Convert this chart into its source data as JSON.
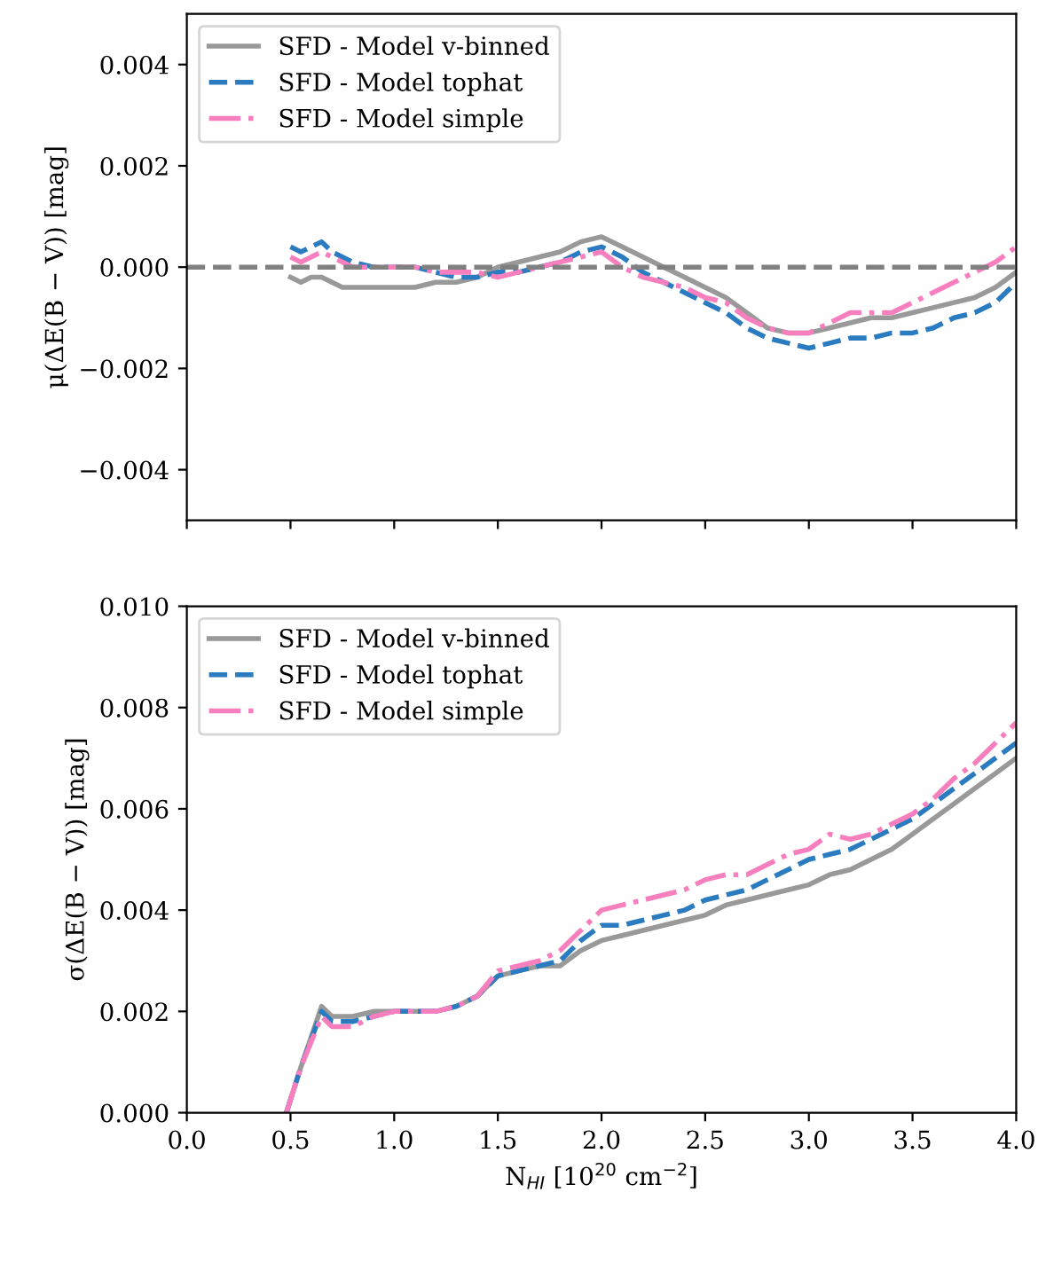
{
  "chart_data": [
    {
      "type": "line",
      "ylabel": "μ(ΔE(B − V)) [mag]",
      "xlim": [
        0.0,
        4.0
      ],
      "ylim": [
        -0.005,
        0.005
      ],
      "xticks": [
        {
          "value": 0.0,
          "label": null
        },
        {
          "value": 0.5,
          "label": null
        },
        {
          "value": 1.0,
          "label": null
        },
        {
          "value": 1.5,
          "label": null
        },
        {
          "value": 2.0,
          "label": null
        },
        {
          "value": 2.5,
          "label": null
        },
        {
          "value": 3.0,
          "label": null
        },
        {
          "value": 3.5,
          "label": null
        },
        {
          "value": 4.0,
          "label": null
        }
      ],
      "yticks": [
        {
          "value": -0.004,
          "label": "−0.004"
        },
        {
          "value": -0.002,
          "label": "−0.002"
        },
        {
          "value": 0.0,
          "label": "0.000"
        },
        {
          "value": 0.002,
          "label": "0.002"
        },
        {
          "value": 0.004,
          "label": "0.004"
        }
      ],
      "tick_labels": "y",
      "legend": "top left",
      "grid": false,
      "ref_lines": [
        {
          "axis": "y",
          "value": 0.0,
          "color": "#808080",
          "line_style": "dashed"
        }
      ],
      "x": [
        0.5,
        0.55,
        0.6,
        0.65,
        0.7,
        0.75,
        0.8,
        0.9,
        1.0,
        1.1,
        1.2,
        1.3,
        1.4,
        1.5,
        1.6,
        1.7,
        1.8,
        1.9,
        2.0,
        2.1,
        2.2,
        2.3,
        2.4,
        2.5,
        2.6,
        2.7,
        2.8,
        2.9,
        3.0,
        3.1,
        3.2,
        3.3,
        3.4,
        3.5,
        3.6,
        3.7,
        3.8,
        3.9,
        4.0
      ],
      "series": [
        {
          "name": "SFD - Model v-binned",
          "color": "#999999",
          "line_style": "solid",
          "values": [
            -0.0002,
            -0.0003,
            -0.0002,
            -0.0002,
            -0.0003,
            -0.0004,
            -0.0004,
            -0.0004,
            -0.0004,
            -0.0004,
            -0.0003,
            -0.0003,
            -0.0002,
            0.0,
            0.0001,
            0.0002,
            0.0003,
            0.0005,
            0.0006,
            0.0004,
            0.0002,
            0.0,
            -0.0002,
            -0.0004,
            -0.0006,
            -0.0009,
            -0.0012,
            -0.0013,
            -0.0013,
            -0.0012,
            -0.0011,
            -0.001,
            -0.001,
            -0.0009,
            -0.0008,
            -0.0007,
            -0.0006,
            -0.0004,
            -0.0001
          ]
        },
        {
          "name": "SFD - Model tophat",
          "color": "#2a7bbf",
          "line_style": "dashed",
          "values": [
            0.0004,
            0.0003,
            0.0004,
            0.0005,
            0.0003,
            0.0002,
            0.0001,
            0.0,
            0.0,
            0.0,
            -0.0001,
            -0.0002,
            -0.0002,
            -0.0001,
            -0.0001,
            0.0,
            0.0001,
            0.0003,
            0.0004,
            0.0002,
            -0.0001,
            -0.0003,
            -0.0005,
            -0.0007,
            -0.0009,
            -0.0012,
            -0.0014,
            -0.0015,
            -0.0016,
            -0.0015,
            -0.0014,
            -0.0014,
            -0.0013,
            -0.0013,
            -0.0012,
            -0.001,
            -0.0009,
            -0.0007,
            -0.0003
          ]
        },
        {
          "name": "SFD - Model simple",
          "color": "#f77fbe",
          "line_style": "dashdot",
          "values": [
            0.0002,
            0.0001,
            0.0002,
            0.0003,
            0.0002,
            0.0001,
            0.0,
            0.0,
            0.0,
            0.0,
            -0.0001,
            -0.0001,
            -0.0001,
            -0.0002,
            -0.0001,
            0.0,
            0.0001,
            0.0002,
            0.0003,
            0.0,
            -0.0002,
            -0.0003,
            -0.0004,
            -0.0006,
            -0.0007,
            -0.001,
            -0.0012,
            -0.0013,
            -0.0013,
            -0.0011,
            -0.0009,
            -0.0009,
            -0.0009,
            -0.0007,
            -0.0005,
            -0.0003,
            -0.0001,
            0.0001,
            0.0004
          ]
        }
      ]
    },
    {
      "type": "line",
      "ylabel": "σ(ΔE(B − V)) [mag]",
      "xlabel": "N$_{HI}$ [10$^{20}$ cm$^{−2}$]",
      "xlim": [
        0.0,
        4.0
      ],
      "ylim": [
        0.0,
        0.01
      ],
      "xticks": [
        {
          "value": 0.0,
          "label": "0.0"
        },
        0.5,
        {
          "value": 1.0,
          "label": "1.0"
        },
        1.5,
        {
          "value": 2.0,
          "label": "2.0"
        },
        2.5,
        {
          "value": 3.0,
          "label": "3.0"
        },
        3.5,
        {
          "value": 4.0,
          "label": "4.0"
        }
      ],
      "yticks": [
        {
          "value": 0.0,
          "label": "0.000"
        },
        0.002,
        0.004,
        0.006,
        0.008,
        {
          "value": 0.01,
          "label": "0.010"
        }
      ],
      "legend": "top left",
      "grid": false,
      "x": [
        0.48,
        0.55,
        0.65,
        0.7,
        0.8,
        0.9,
        1.0,
        1.1,
        1.2,
        1.3,
        1.4,
        1.5,
        1.6,
        1.7,
        1.8,
        1.9,
        2.0,
        2.1,
        2.2,
        2.3,
        2.4,
        2.5,
        2.6,
        2.7,
        2.8,
        2.9,
        3.0,
        3.1,
        3.2,
        3.3,
        3.4,
        3.5,
        3.6,
        3.7,
        3.8,
        3.9,
        4.0
      ],
      "series": [
        {
          "name": "SFD - Model v-binned",
          "color": "#999999",
          "line_style": "solid",
          "values": [
            0.0,
            0.0009,
            0.0021,
            0.0019,
            0.0019,
            0.002,
            0.002,
            0.002,
            0.002,
            0.0021,
            0.0023,
            0.0027,
            0.0028,
            0.0029,
            0.0029,
            0.0032,
            0.0034,
            0.0035,
            0.0036,
            0.0037,
            0.0038,
            0.0039,
            0.0041,
            0.0042,
            0.0043,
            0.0044,
            0.0045,
            0.0047,
            0.0048,
            0.005,
            0.0052,
            0.0055,
            0.0058,
            0.0061,
            0.0064,
            0.0067,
            0.007
          ]
        },
        {
          "name": "SFD - Model tophat",
          "color": "#2a7bbf",
          "line_style": "dashed",
          "values": [
            0.0,
            0.0009,
            0.002,
            0.0018,
            0.0018,
            0.0019,
            0.002,
            0.002,
            0.002,
            0.0021,
            0.0023,
            0.0027,
            0.0028,
            0.0029,
            0.003,
            0.0034,
            0.0037,
            0.0037,
            0.0038,
            0.0039,
            0.004,
            0.0042,
            0.0043,
            0.0044,
            0.0046,
            0.0048,
            0.005,
            0.0051,
            0.0052,
            0.0054,
            0.0056,
            0.0058,
            0.0061,
            0.0064,
            0.0067,
            0.007,
            0.0073
          ]
        },
        {
          "name": "SFD - Model simple",
          "color": "#f77fbe",
          "line_style": "dashdot",
          "values": [
            0.0,
            0.0009,
            0.0019,
            0.0017,
            0.0017,
            0.0019,
            0.002,
            0.002,
            0.002,
            0.0021,
            0.0023,
            0.0028,
            0.0029,
            0.003,
            0.0032,
            0.0036,
            0.004,
            0.0041,
            0.0042,
            0.0043,
            0.0044,
            0.0046,
            0.0047,
            0.0047,
            0.0049,
            0.0051,
            0.0052,
            0.0055,
            0.0054,
            0.0055,
            0.0057,
            0.0059,
            0.0062,
            0.0066,
            0.0069,
            0.0073,
            0.0077
          ]
        }
      ]
    }
  ]
}
